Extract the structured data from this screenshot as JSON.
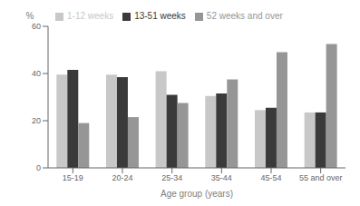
{
  "chart_data": {
    "type": "bar",
    "categories": [
      "15-19",
      "20-24",
      "25-34",
      "35-44",
      "45-54",
      "55 and over"
    ],
    "series": [
      {
        "name": "1-12 weeks",
        "color": "#c8c8c8",
        "values": [
          39.5,
          39.5,
          41.0,
          30.5,
          24.5,
          23.5
        ]
      },
      {
        "name": "13-51 weeks",
        "color": "#3a3a3a",
        "values": [
          41.5,
          38.5,
          31.0,
          31.5,
          25.5,
          23.5
        ]
      },
      {
        "name": "52 weeks and over",
        "color": "#969696",
        "values": [
          19.0,
          21.5,
          27.5,
          37.5,
          49.0,
          52.5
        ]
      }
    ],
    "xlabel": "Age group (years)",
    "ylabel": "%",
    "ylim": [
      0,
      60
    ],
    "yticks": [
      0,
      20,
      40,
      60
    ],
    "grid": false,
    "legend": "upper left"
  }
}
